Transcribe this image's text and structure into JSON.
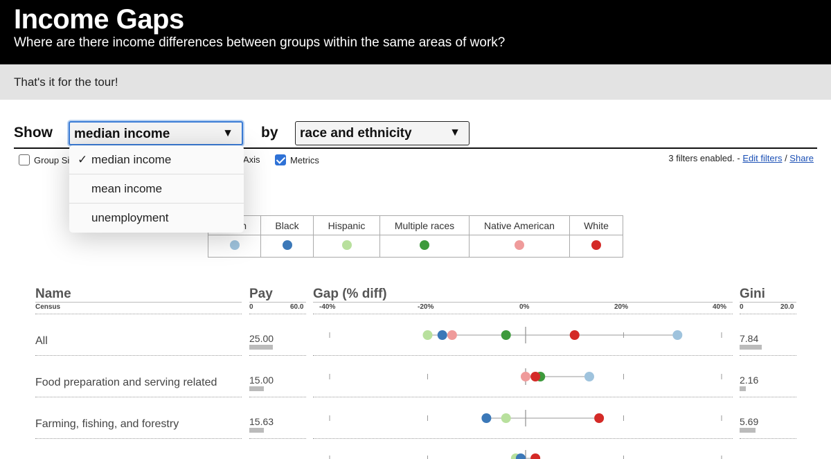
{
  "header": {
    "title": "Income Gaps",
    "subtitle": "Where are there income differences between groups within the same areas of work?"
  },
  "tour": {
    "message": "That's it for the tour!"
  },
  "controls": {
    "show_label": "Show",
    "metric_value": "median income",
    "by_label": "by",
    "group_value": "race and ethnicity",
    "dropdown_arrow": "▼",
    "metric_options": [
      {
        "label": "median income",
        "selected": true,
        "check": "✓"
      },
      {
        "label": "mean income",
        "selected": false
      },
      {
        "label": "unemployment",
        "selected": false
      }
    ],
    "checkboxes": [
      {
        "label": "Group Si",
        "checked": false
      },
      {
        "label": "Axis",
        "checked": false
      },
      {
        "label": "Metrics",
        "checked": true
      }
    ],
    "filters_text": "3 filters enabled. - ",
    "edit_filters": "Edit filters",
    "filters_sep": " / ",
    "share": "Share"
  },
  "legend": [
    {
      "name": "Asian",
      "visible": "n",
      "color": "#9fc3dd"
    },
    {
      "name": "Black",
      "color": "#3b78b8"
    },
    {
      "name": "Hispanic",
      "color": "#b8e09d"
    },
    {
      "name": "Multiple races",
      "color": "#3d9a3c"
    },
    {
      "name": "Native American",
      "color": "#ef9b9b"
    },
    {
      "name": "White",
      "color": "#d42a27"
    }
  ],
  "table": {
    "headers": {
      "name": "Name",
      "pay": "Pay",
      "gap": "Gap (% diff)",
      "gini": "Gini"
    },
    "subheaders": {
      "name": "Census",
      "pay_min": "0",
      "pay_max": "60.0",
      "gap_ticks": [
        "-40%",
        "-20%",
        "0%",
        "20%",
        "40%"
      ],
      "gini_min": "0",
      "gini_max": "20.0"
    },
    "rows": [
      {
        "name": "All",
        "pay": "25.00",
        "gini": "7.84",
        "gaps": [
          {
            "group": "Hispanic",
            "value": -20
          },
          {
            "group": "Black",
            "value": -17
          },
          {
            "group": "Native American",
            "value": -15
          },
          {
            "group": "Multiple races",
            "value": -4
          },
          {
            "group": "White",
            "value": 10
          },
          {
            "group": "Asian",
            "value": 31
          }
        ]
      },
      {
        "name": "Food preparation and serving related",
        "pay": "15.00",
        "gini": "2.16",
        "gaps": [
          {
            "group": "Native American",
            "value": 0
          },
          {
            "group": "Multiple races",
            "value": 3
          },
          {
            "group": "White",
            "value": 2
          },
          {
            "group": "Asian",
            "value": 13
          }
        ]
      },
      {
        "name": "Farming, fishing, and forestry",
        "pay": "15.63",
        "gini": "5.69",
        "gaps": [
          {
            "group": "Black",
            "value": -8
          },
          {
            "group": "Hispanic",
            "value": -4
          },
          {
            "group": "White",
            "value": 15
          }
        ]
      },
      {
        "name": "",
        "pay": "",
        "gini": "",
        "gaps": [
          {
            "group": "Hispanic",
            "value": -2
          },
          {
            "group": "Black",
            "value": -1
          },
          {
            "group": "White",
            "value": 2
          }
        ]
      }
    ],
    "pay_axis_max": 60,
    "gini_axis_max": 20,
    "gap_axis_range": [
      -40,
      40
    ]
  }
}
